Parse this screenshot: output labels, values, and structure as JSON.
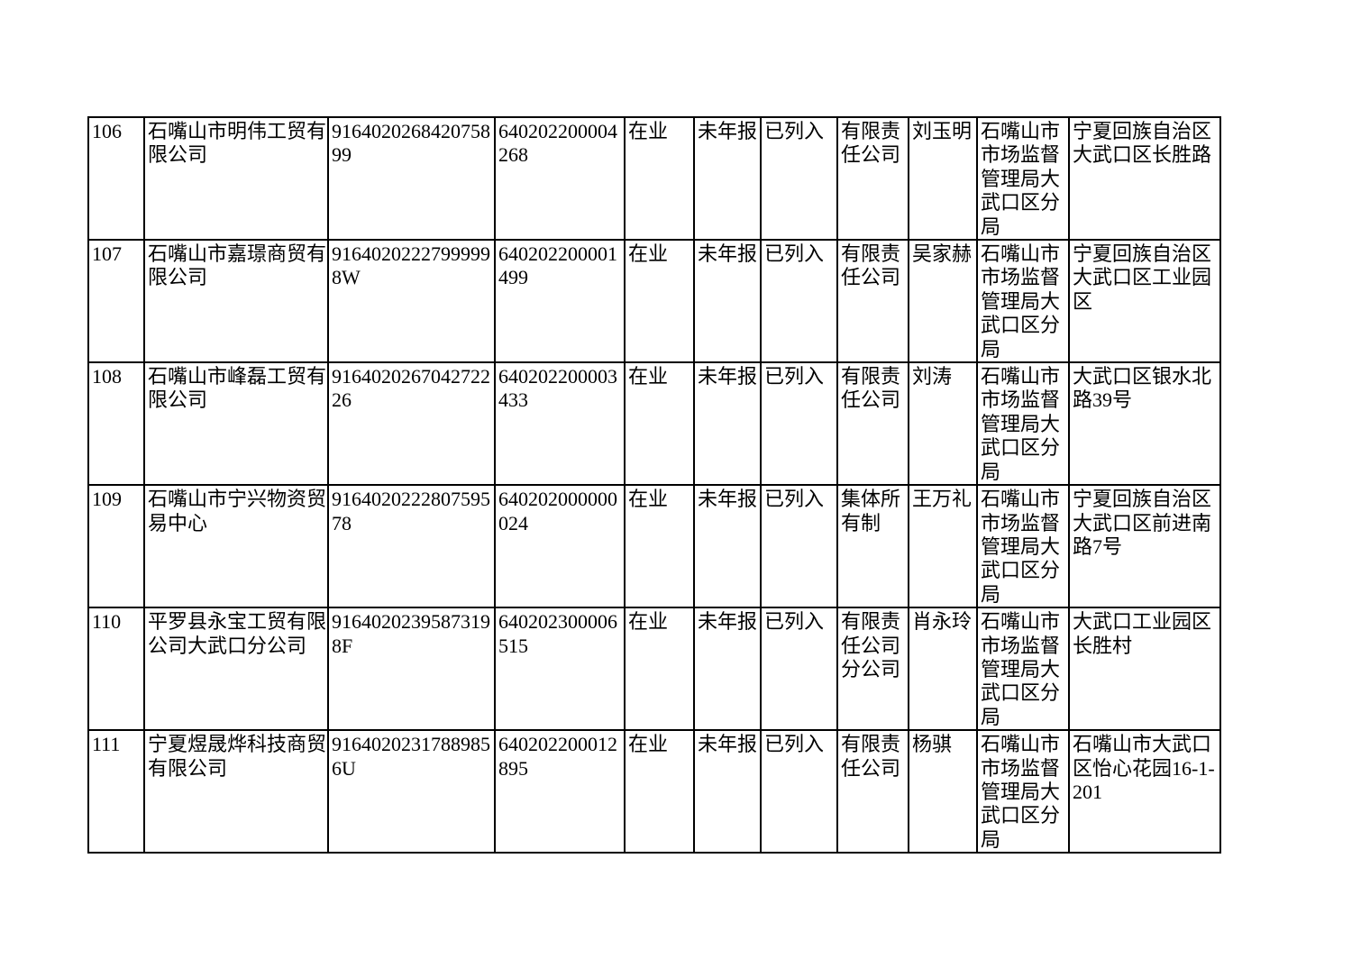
{
  "page": {
    "background_color": "#ffffff",
    "text_color": "#000000",
    "border_color": "#000000"
  },
  "table": {
    "rows": [
      {
        "cells": [
          "106",
          "石嘴山市明伟工贸有限公司",
          "916402026842075899",
          "640202200004268",
          "在业",
          "未年报",
          "已列入",
          "有限责任公司",
          "刘玉明",
          "石嘴山市市场监督管理局大武口区分局",
          "宁夏回族自治区大武口区长胜路"
        ]
      },
      {
        "cells": [
          "107",
          "石嘴山市嘉璟商贸有限公司",
          "91640202227999998W",
          "640202200001499",
          "在业",
          "未年报",
          "已列入",
          "有限责任公司",
          "吴家赫",
          "石嘴山市市场监督管理局大武口区分局",
          "宁夏回族自治区大武口区工业园区"
        ]
      },
      {
        "cells": [
          "108",
          "石嘴山市峰磊工贸有限公司",
          "916402026704272226",
          "640202200003433",
          "在业",
          "未年报",
          "已列入",
          "有限责任公司",
          "刘涛",
          "石嘴山市市场监督管理局大武口区分局",
          "大武口区银水北路39号"
        ]
      },
      {
        "cells": [
          "109",
          "石嘴山市宁兴物资贸易中心",
          "916402022280759578",
          "640202000000024",
          "在业",
          "未年报",
          "已列入",
          "集体所有制",
          "王万礼",
          "石嘴山市市场监督管理局大武口区分局",
          "宁夏回族自治区大武口区前进南路7号"
        ]
      },
      {
        "cells": [
          "110",
          "平罗县永宝工贸有限公司大武口分公司",
          "91640202395873198F",
          "640202300006515",
          "在业",
          "未年报",
          "已列入",
          "有限责任公司分公司",
          "肖永玲",
          "石嘴山市市场监督管理局大武口区分局",
          "大武口工业园区长胜村"
        ]
      },
      {
        "cells": [
          "111",
          "宁夏煜晟烨科技商贸有限公司",
          "91640202317889856U",
          "640202200012895",
          "在业",
          "未年报",
          "已列入",
          "有限责任公司",
          "杨骐",
          "石嘴山市市场监督管理局大武口区分局",
          "石嘴山市大武口区怡心花园16-1-201"
        ]
      }
    ]
  }
}
